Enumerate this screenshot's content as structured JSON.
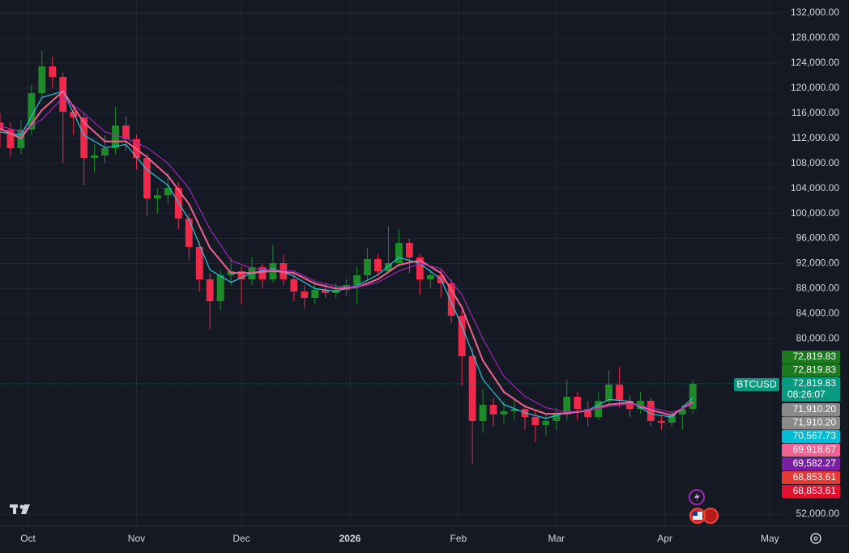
{
  "chart_data": {
    "type": "candlestick",
    "xlim": [
      0,
      223.4
    ],
    "xticks": [
      {
        "value": 8,
        "label": "Oct"
      },
      {
        "value": 39,
        "label": "Nov"
      },
      {
        "value": 69,
        "label": "Dec"
      },
      {
        "value": 100,
        "label": "2026"
      },
      {
        "value": 131,
        "label": "Feb"
      },
      {
        "value": 159,
        "label": "Mar"
      },
      {
        "value": 190,
        "label": "Apr"
      },
      {
        "value": 220,
        "label": "May"
      }
    ],
    "ylim": [
      50065,
      134065
    ],
    "yticks": [
      {
        "value": 132000,
        "label": "132,000.00"
      },
      {
        "value": 128000,
        "label": "128,000.00"
      },
      {
        "value": 124000,
        "label": "124,000.00"
      },
      {
        "value": 120000,
        "label": "120,000.00"
      },
      {
        "value": 116000,
        "label": "116,000.00"
      },
      {
        "value": 112000,
        "label": "112,000.00"
      },
      {
        "value": 108000,
        "label": "108,000.00"
      },
      {
        "value": 104000,
        "label": "104,000.00"
      },
      {
        "value": 100000,
        "label": "100,000.00"
      },
      {
        "value": 96000,
        "label": "96,000.00"
      },
      {
        "value": 92000,
        "label": "92,000.00"
      },
      {
        "value": 88000,
        "label": "88,000.00"
      },
      {
        "value": 84000,
        "label": "84,000.00"
      },
      {
        "value": 80000,
        "label": "80,000.00"
      },
      {
        "value": 52000,
        "label": "52,000.00"
      }
    ],
    "grid": true,
    "up_color": "#1e8a2a",
    "down_color": "#f0284a",
    "x": [
      0,
      3,
      6,
      9,
      12,
      15,
      18,
      21,
      24,
      27,
      30,
      33,
      36,
      39,
      42,
      45,
      48,
      51,
      54,
      57,
      60,
      63,
      66,
      69,
      72,
      75,
      78,
      81,
      84,
      87,
      90,
      93,
      96,
      99,
      102,
      105,
      108,
      111,
      114,
      117,
      120,
      123,
      126,
      129,
      132,
      135,
      138,
      141,
      144,
      147,
      150,
      153,
      156,
      159,
      162,
      165,
      168,
      171,
      174,
      177,
      180,
      183,
      186,
      189,
      192,
      195,
      198
    ],
    "open": [
      114500,
      113390,
      110415,
      113390,
      119200,
      123470,
      121790,
      116230,
      115330,
      108865,
      109250,
      110415,
      114030,
      111840,
      108865,
      102400,
      102900,
      104085,
      99175,
      94650,
      89480,
      85990,
      90130,
      90775,
      89480,
      91420,
      89480,
      92065,
      89480,
      87540,
      86510,
      87800,
      87285,
      87800,
      88575,
      90130,
      92710,
      90775,
      92065,
      95295,
      92970,
      89480,
      90130,
      88835,
      83665,
      77205,
      66865,
      69450,
      67900,
      68415,
      68800,
      67510,
      66220,
      66865,
      67900,
      70740,
      68800,
      67510,
      70095,
      72680,
      70095,
      68800,
      70095,
      66865,
      66605,
      67900,
      68800
    ],
    "high": [
      116000,
      114500,
      114800,
      120500,
      126000,
      125000,
      122500,
      117500,
      116000,
      111000,
      112500,
      117000,
      115500,
      112500,
      109500,
      104000,
      106500,
      105000,
      100000,
      95500,
      90500,
      91000,
      93000,
      91500,
      93000,
      92000,
      95000,
      93500,
      90500,
      88500,
      89000,
      88800,
      88900,
      89500,
      91500,
      94500,
      93500,
      98000,
      97500,
      96000,
      93500,
      91000,
      91000,
      89500,
      84500,
      78500,
      72000,
      70500,
      70000,
      70500,
      69500,
      68500,
      68000,
      69000,
      73500,
      71500,
      70000,
      71500,
      75000,
      75500,
      71000,
      71500,
      70500,
      67800,
      68500,
      69500,
      73500
    ],
    "low": [
      110500,
      109000,
      109500,
      112500,
      118500,
      120000,
      108000,
      112500,
      104500,
      106500,
      108000,
      109500,
      110000,
      107000,
      99500,
      100000,
      101500,
      97500,
      92500,
      87500,
      81500,
      84500,
      88500,
      85500,
      88500,
      88000,
      89000,
      88500,
      86000,
      84800,
      85500,
      86500,
      86500,
      86800,
      85500,
      89500,
      90000,
      90500,
      91500,
      90500,
      87000,
      88000,
      86500,
      82500,
      72500,
      60000,
      65000,
      66000,
      66500,
      67000,
      65500,
      63500,
      64500,
      65500,
      67000,
      67000,
      66000,
      67000,
      69500,
      69000,
      67500,
      68000,
      66000,
      65500,
      66000,
      65500,
      68000
    ],
    "close": [
      113390,
      110415,
      113390,
      119200,
      123470,
      121790,
      116230,
      115330,
      108865,
      109250,
      110415,
      114030,
      111840,
      108865,
      102400,
      102900,
      104085,
      99175,
      94650,
      89480,
      85990,
      90130,
      90775,
      89480,
      91420,
      89480,
      92065,
      89480,
      87540,
      86510,
      87800,
      87285,
      87800,
      88575,
      90130,
      92710,
      90775,
      92065,
      95295,
      92970,
      89480,
      90130,
      88835,
      83665,
      77205,
      66865,
      69450,
      67900,
      68415,
      68800,
      67510,
      66220,
      66865,
      67900,
      70740,
      68800,
      67510,
      70095,
      72680,
      70095,
      68800,
      70095,
      66865,
      66605,
      67900,
      68800,
      72819.83
    ],
    "ma_x": [
      0,
      6,
      12,
      18,
      24,
      30,
      36,
      42,
      48,
      54,
      60,
      66,
      72,
      78,
      84,
      90,
      96,
      102,
      108,
      114,
      120,
      126,
      132,
      138,
      144,
      150,
      156,
      162,
      168,
      174,
      180,
      186,
      192,
      198
    ],
    "lines": [
      {
        "color": "#26c6da",
        "values": [
          113000,
          112500,
          118500,
          119500,
          112500,
          110500,
          111000,
          107000,
          104500,
          99000,
          91000,
          89000,
          90500,
          91200,
          90000,
          88000,
          87600,
          88500,
          90200,
          93000,
          92000,
          89500,
          82000,
          73500,
          69500,
          68200,
          67300,
          68200,
          68600,
          70300,
          70000,
          68000,
          67500,
          70567.73
        ]
      },
      {
        "color": "#f06292",
        "values": [
          113500,
          112000,
          116500,
          119500,
          114500,
          111500,
          111500,
          109000,
          106000,
          101500,
          94500,
          90500,
          90500,
          90800,
          90500,
          88800,
          88000,
          88200,
          89500,
          91800,
          92500,
          90500,
          85000,
          76500,
          71500,
          69200,
          68000,
          68100,
          68500,
          69500,
          69800,
          68600,
          67800,
          69918.67
        ]
      },
      {
        "color": "#9c27b0",
        "values": [
          114000,
          113000,
          115000,
          118500,
          116000,
          113000,
          112000,
          110500,
          108000,
          104000,
          97500,
          92500,
          91200,
          91000,
          90800,
          89200,
          88400,
          88200,
          89000,
          90800,
          92000,
          91200,
          87000,
          80000,
          74000,
          70800,
          69000,
          68300,
          68600,
          69200,
          69600,
          69000,
          68200,
          69582.27
        ]
      }
    ],
    "last_price": 72819.83,
    "symbol": "BTCUSD",
    "countdown": "08:26:07",
    "price_tags": [
      {
        "text": "72,819.83",
        "color": "#1e7a1e"
      },
      {
        "text": "72,819.83",
        "color": "#1e7a1e"
      },
      {
        "text": "72,819.83",
        "color": "#089981"
      },
      {
        "text": "71,910.20",
        "color": "#8a8a8a"
      },
      {
        "text": "71,910.20",
        "color": "#8a8a8a"
      },
      {
        "text": "70,567.73",
        "color": "#00bcd4"
      },
      {
        "text": "69,918.67",
        "color": "#f06292"
      },
      {
        "text": "69,582.27",
        "color": "#7b1fa2"
      },
      {
        "text": "68,853.61",
        "color": "#e53935"
      },
      {
        "text": "68,853.61",
        "color": "#e0102e"
      }
    ]
  }
}
